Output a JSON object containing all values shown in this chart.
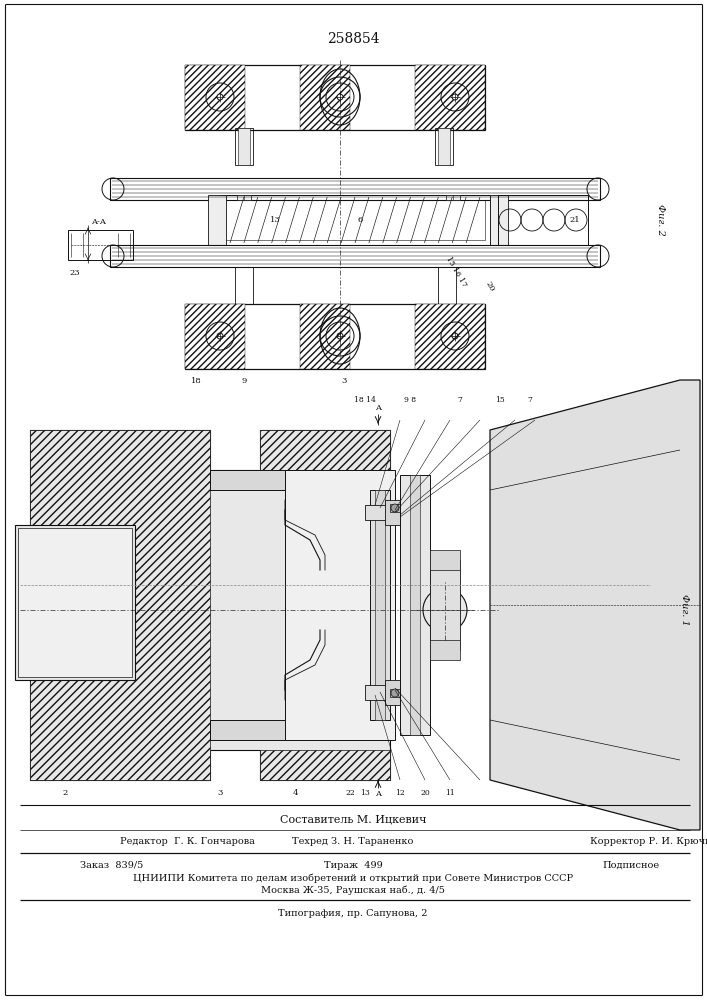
{
  "patent_number": "258854",
  "footer_composer": "Составитель М. Ицкевич",
  "footer_editor": "Редактор  Г. К. Гончарова",
  "footer_techred": "Техред З. Н. Тараненко",
  "footer_corrector": "Корректор Р. И. Крючкова",
  "footer_order": "Заказ  839/5",
  "footer_tirazh": "Тираж  499",
  "footer_podpisnoe": "Подписное",
  "footer_org": "ЦНИИПИ Комитета по делам изобретений и открытий при Совете Министров СССР",
  "footer_addr": "Москва Ж-35, Раушская наб., д. 4/5",
  "footer_print": "Типография, пр. Сапунова, 2",
  "lc": "#111111"
}
